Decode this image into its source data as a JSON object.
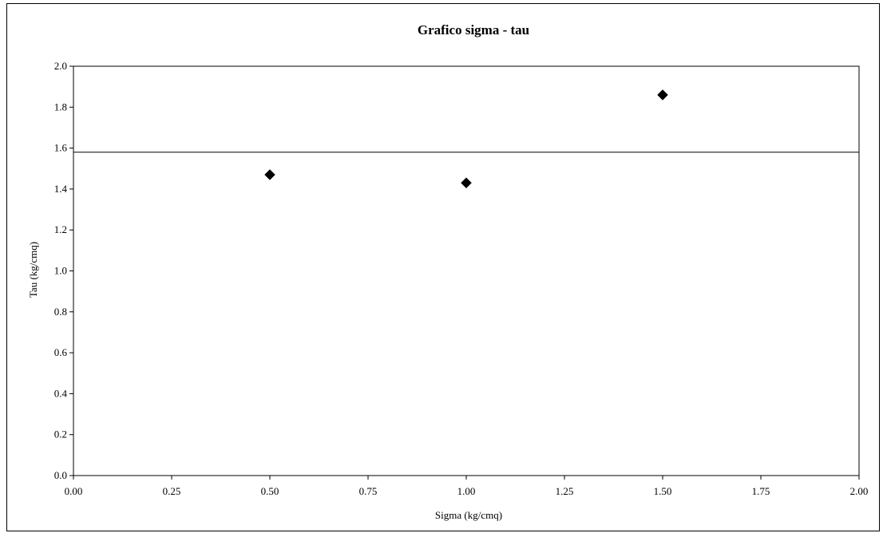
{
  "chart_data": {
    "type": "scatter",
    "title": "Grafico sigma - tau",
    "xlabel": "Sigma (kg/cmq)",
    "ylabel": "Tau (kg/cmq)",
    "xlim": [
      0.0,
      2.0
    ],
    "ylim": [
      0.0,
      2.0
    ],
    "x_ticks": [
      "0.00",
      "0.25",
      "0.50",
      "0.75",
      "1.00",
      "1.25",
      "1.50",
      "1.75",
      "2.00"
    ],
    "y_ticks": [
      "0.0",
      "0.2",
      "0.4",
      "0.6",
      "0.8",
      "1.0",
      "1.2",
      "1.4",
      "1.6",
      "1.8",
      "2.0"
    ],
    "grid": false,
    "legend": "none",
    "series": [
      {
        "marker": "diamond",
        "color": "#000000",
        "points": [
          {
            "x": 0.5,
            "y": 1.47
          },
          {
            "x": 1.0,
            "y": 1.43
          },
          {
            "x": 1.5,
            "y": 1.86
          }
        ]
      }
    ],
    "reference_lines": [
      {
        "orientation": "horizontal",
        "y": 1.58,
        "color": "#000000"
      }
    ]
  }
}
